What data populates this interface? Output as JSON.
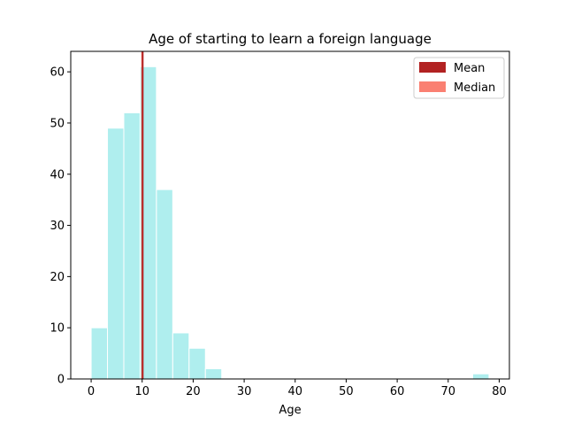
{
  "chart_data": {
    "type": "bar",
    "title": "Age of starting to learn a foreign language",
    "xlabel": "Age",
    "ylabel": "",
    "xlim": [
      -4,
      82
    ],
    "ylim": [
      0,
      64
    ],
    "xticks": [
      0,
      10,
      20,
      30,
      40,
      50,
      60,
      70,
      80
    ],
    "yticks": [
      0,
      10,
      20,
      30,
      40,
      50,
      60
    ],
    "bins": [
      {
        "x0": 0,
        "x1": 3.2,
        "count": 10
      },
      {
        "x0": 3.2,
        "x1": 6.4,
        "count": 49
      },
      {
        "x0": 6.4,
        "x1": 9.6,
        "count": 52
      },
      {
        "x0": 9.6,
        "x1": 12.8,
        "count": 61
      },
      {
        "x0": 12.8,
        "x1": 16.0,
        "count": 37
      },
      {
        "x0": 16.0,
        "x1": 19.2,
        "count": 9
      },
      {
        "x0": 19.2,
        "x1": 22.4,
        "count": 6
      },
      {
        "x0": 22.4,
        "x1": 25.6,
        "count": 2
      },
      {
        "x0": 74.8,
        "x1": 78.0,
        "count": 1
      }
    ],
    "mean": 10.1,
    "median": 10.0,
    "legend": [
      {
        "label": "Mean",
        "color": "#b22222"
      },
      {
        "label": "Median",
        "color": "#fa8072"
      }
    ],
    "legend_position": "top-right",
    "bar_color": "#afeeee",
    "grid": false
  }
}
